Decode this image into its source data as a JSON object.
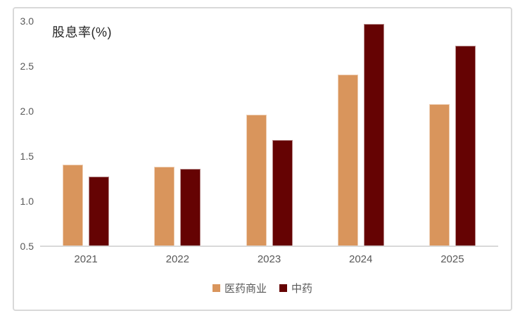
{
  "chart_data": {
    "type": "bar",
    "title": "股息率(%)",
    "categories": [
      "2021",
      "2022",
      "2023",
      "2024",
      "2025"
    ],
    "series": [
      {
        "name": "医药商业",
        "color": "#D9955C",
        "values": [
          1.41,
          1.38,
          1.96,
          2.41,
          2.08
        ]
      },
      {
        "name": "中药",
        "color": "#650303",
        "values": [
          1.27,
          1.36,
          1.68,
          2.97,
          2.73
        ]
      }
    ],
    "xlabel": "",
    "ylabel": "股息率(%)",
    "ylim": [
      0.5,
      3.0
    ],
    "ytick_labels": [
      "0.5",
      "1.0",
      "1.5",
      "2.0",
      "2.5",
      "3.0"
    ],
    "yticks": [
      0.5,
      1.0,
      1.5,
      2.0,
      2.5,
      3.0
    ],
    "grid": false,
    "legend_position": "bottom"
  },
  "style_colors": {
    "frame_border": "#D9D9D9",
    "axis_line": "#D9D9D9",
    "tick_text": "#595959",
    "title_text": "#262626",
    "background": "#FFFFFF"
  }
}
